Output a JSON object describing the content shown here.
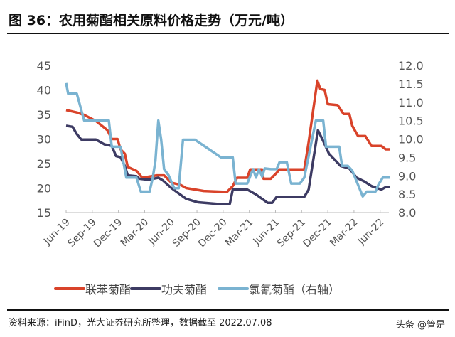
{
  "title": "图 36：农用菊酯相关原料价格走势（万元/吨）",
  "source": "资料来源：iFinD，光大证券研究所整理，数据截至 2022.07.08",
  "watermark": "头条 @管是",
  "chart_data": {
    "type": "line",
    "title": "图 36：农用菊酯相关原料价格走势（万元/吨）",
    "x_ticks": [
      "Jun-19",
      "Sep-19",
      "Dec-19",
      "Mar-20",
      "Jun-20",
      "Sep-20",
      "Dec-20",
      "Mar-21",
      "Jun-21",
      "Sep-21",
      "Dec-21",
      "Mar-22",
      "Jun-22"
    ],
    "ylim_left": [
      15,
      45
    ],
    "yticks_left": [
      "15",
      "20",
      "25",
      "30",
      "35",
      "40",
      "45"
    ],
    "ylim_right": [
      8.0,
      12.0
    ],
    "yticks_right": [
      "8.0",
      "8.5",
      "9.0",
      "9.5",
      "10.0",
      "10.5",
      "11.0",
      "11.5",
      "12.0"
    ],
    "grid": false,
    "legend_position": "bottom",
    "series": [
      {
        "name": "联苯菊酯",
        "axis": "left",
        "color": "#d9432a",
        "points": [
          [
            "2019-06-01",
            35.9
          ],
          [
            "2019-07-08",
            35.4
          ],
          [
            "2019-08-03",
            34.9
          ],
          [
            "2019-09-13",
            33.7
          ],
          [
            "2019-10-23",
            31.8
          ],
          [
            "2019-11-08",
            30
          ],
          [
            "2019-11-28",
            30
          ],
          [
            "2019-12-08",
            27.9
          ],
          [
            "2019-12-23",
            27
          ],
          [
            "2020-01-03",
            24.3
          ],
          [
            "2020-02-03",
            23.5
          ],
          [
            "2020-02-23",
            22.1
          ],
          [
            "2020-04-13",
            22.6
          ],
          [
            "2020-05-08",
            22.6
          ],
          [
            "2020-06-03",
            21.1
          ],
          [
            "2020-07-03",
            20.7
          ],
          [
            "2020-07-24",
            20
          ],
          [
            "2020-09-24",
            19.4
          ],
          [
            "2020-12-14",
            19.2
          ],
          [
            "2021-01-04",
            20.4
          ],
          [
            "2021-01-19",
            22.1
          ],
          [
            "2021-02-24",
            22.1
          ],
          [
            "2021-03-04",
            23.8
          ],
          [
            "2021-04-15",
            23.8
          ],
          [
            "2021-04-20",
            21.9
          ],
          [
            "2021-05-15",
            21.9
          ],
          [
            "2021-06-05",
            23.1
          ],
          [
            "2021-06-15",
            23.8
          ],
          [
            "2021-09-10",
            23.8
          ],
          [
            "2021-09-25",
            29.3
          ],
          [
            "2021-10-25",
            41.9
          ],
          [
            "2021-11-05",
            40.2
          ],
          [
            "2021-11-20",
            40
          ],
          [
            "2021-12-01",
            37.1
          ],
          [
            "2022-01-05",
            36.9
          ],
          [
            "2022-01-25",
            35.1
          ],
          [
            "2022-02-15",
            35.1
          ],
          [
            "2022-02-25",
            32.7
          ],
          [
            "2022-03-15",
            30.6
          ],
          [
            "2022-04-10",
            30.6
          ],
          [
            "2022-05-01",
            28.6
          ],
          [
            "2022-06-05",
            28.6
          ],
          [
            "2022-06-20",
            27.9
          ],
          [
            "2022-07-06",
            27.9
          ]
        ]
      },
      {
        "name": "功夫菊酯",
        "axis": "left",
        "color": "#3d3b63",
        "points": [
          [
            "2019-06-01",
            32.7
          ],
          [
            "2019-06-23",
            32.5
          ],
          [
            "2019-07-08",
            31
          ],
          [
            "2019-07-23",
            29.9
          ],
          [
            "2019-09-13",
            29.9
          ],
          [
            "2019-10-13",
            28.9
          ],
          [
            "2019-11-08",
            28.6
          ],
          [
            "2019-11-23",
            26.5
          ],
          [
            "2019-12-08",
            26.3
          ],
          [
            "2019-12-23",
            24.5
          ],
          [
            "2020-01-03",
            22.6
          ],
          [
            "2020-02-03",
            22.4
          ],
          [
            "2020-02-13",
            21.9
          ],
          [
            "2020-03-13",
            21.7
          ],
          [
            "2020-04-18",
            22.1
          ],
          [
            "2020-05-03",
            21.6
          ],
          [
            "2020-06-03",
            20
          ],
          [
            "2020-07-24",
            17.8
          ],
          [
            "2020-09-04",
            17.1
          ],
          [
            "2020-11-24",
            16.7
          ],
          [
            "2020-12-24",
            16.8
          ],
          [
            "2021-01-04",
            19.7
          ],
          [
            "2021-02-24",
            19.7
          ],
          [
            "2021-03-24",
            18.7
          ],
          [
            "2021-05-04",
            17
          ],
          [
            "2021-05-20",
            17
          ],
          [
            "2021-06-05",
            18.2
          ],
          [
            "2021-09-10",
            18.2
          ],
          [
            "2021-09-25",
            19.7
          ],
          [
            "2021-10-27",
            31.8
          ],
          [
            "2021-11-15",
            29.6
          ],
          [
            "2021-12-05",
            27
          ],
          [
            "2022-01-15",
            24.5
          ],
          [
            "2022-02-15",
            24
          ],
          [
            "2022-03-10",
            22.1
          ],
          [
            "2022-04-05",
            21.4
          ],
          [
            "2022-05-01",
            20.4
          ],
          [
            "2022-06-05",
            19.7
          ],
          [
            "2022-06-20",
            20.2
          ],
          [
            "2022-07-06",
            20.2
          ]
        ]
      },
      {
        "name": "氯氰菊酯（右轴）",
        "axis": "right",
        "color": "#7ab3d1",
        "points": [
          [
            "2019-06-01",
            11.52
          ],
          [
            "2019-06-08",
            11.23
          ],
          [
            "2019-07-08",
            11.23
          ],
          [
            "2019-08-03",
            10.5
          ],
          [
            "2019-10-28",
            10.5
          ],
          [
            "2019-11-08",
            9.79
          ],
          [
            "2019-12-08",
            9.79
          ],
          [
            "2019-12-28",
            8.95
          ],
          [
            "2020-02-03",
            8.95
          ],
          [
            "2020-02-18",
            8.57
          ],
          [
            "2020-03-18",
            8.57
          ],
          [
            "2020-03-29",
            8.95
          ],
          [
            "2020-04-08",
            9.4
          ],
          [
            "2020-04-18",
            10.5
          ],
          [
            "2020-04-28",
            9.98
          ],
          [
            "2020-05-08",
            9.18
          ],
          [
            "2020-05-23",
            9.02
          ],
          [
            "2020-06-13",
            8.66
          ],
          [
            "2020-06-28",
            8.66
          ],
          [
            "2020-07-13",
            9.98
          ],
          [
            "2020-08-24",
            9.98
          ],
          [
            "2020-11-24",
            9.5
          ],
          [
            "2021-01-04",
            9.5
          ],
          [
            "2021-01-14",
            8.79
          ],
          [
            "2021-02-24",
            8.79
          ],
          [
            "2021-03-14",
            9.18
          ],
          [
            "2021-03-24",
            8.95
          ],
          [
            "2021-04-04",
            9.18
          ],
          [
            "2021-04-15",
            8.98
          ],
          [
            "2021-04-24",
            9.2
          ],
          [
            "2021-05-15",
            9.18
          ],
          [
            "2021-06-05",
            9.18
          ],
          [
            "2021-06-15",
            9.37
          ],
          [
            "2021-07-10",
            9.37
          ],
          [
            "2021-07-25",
            8.79
          ],
          [
            "2021-08-25",
            8.79
          ],
          [
            "2021-09-10",
            8.95
          ],
          [
            "2021-10-20",
            10.5
          ],
          [
            "2021-11-15",
            10.5
          ],
          [
            "2021-11-25",
            9.79
          ],
          [
            "2022-01-10",
            9.79
          ],
          [
            "2022-01-20",
            9.27
          ],
          [
            "2022-02-10",
            9.27
          ],
          [
            "2022-02-25",
            9.14
          ],
          [
            "2022-04-01",
            8.44
          ],
          [
            "2022-04-15",
            8.57
          ],
          [
            "2022-05-15",
            8.57
          ],
          [
            "2022-05-25",
            8.76
          ],
          [
            "2022-06-10",
            8.95
          ],
          [
            "2022-07-06",
            8.95
          ]
        ]
      }
    ]
  }
}
